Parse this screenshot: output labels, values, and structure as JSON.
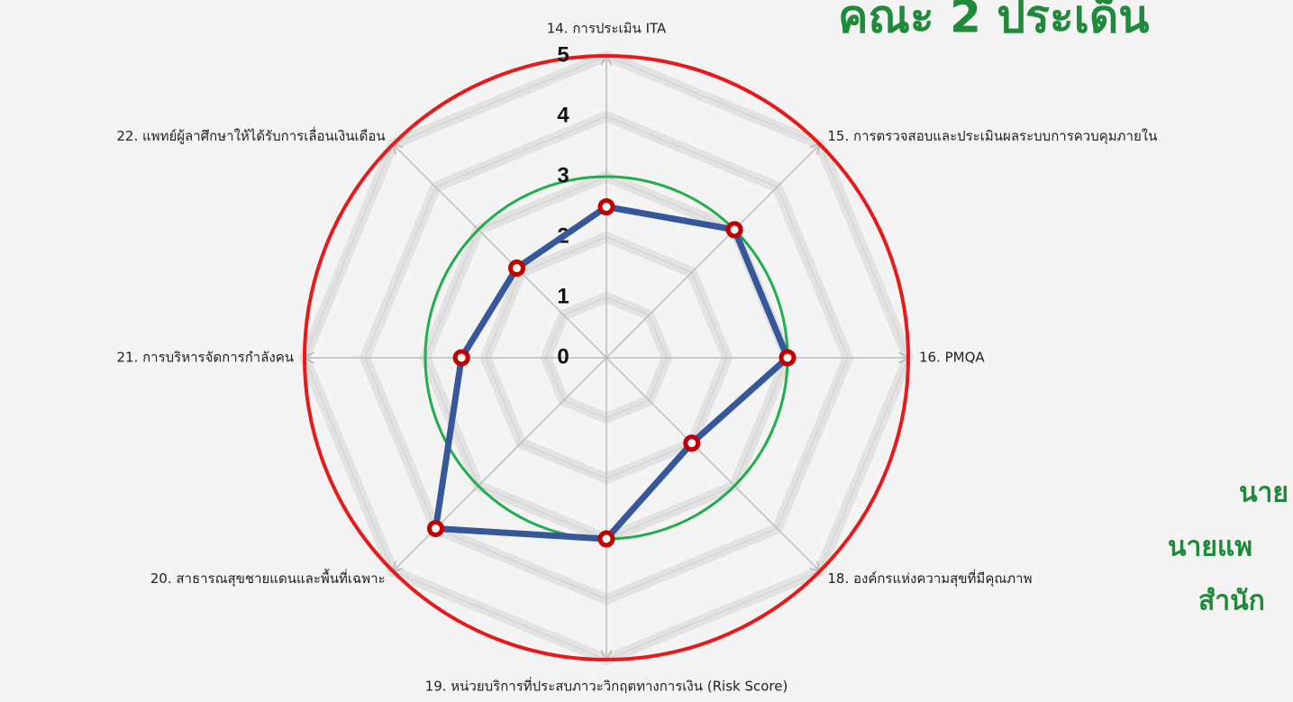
{
  "chart_data": {
    "type": "radar",
    "categories": [
      "14. การประเมิน ITA",
      "15. การตรวจสอบและประเมินผลระบบการควบคุมภายใน",
      "16. PMQA",
      "18. องค์กรแห่งความสุขที่มีคุณภาพ",
      "19. หน่วยบริการที่ประสบภาวะวิกฤตทางการเงิน (Risk Score)",
      "20. สาธารณสุขชายแดนและพื้นที่เฉพาะ",
      "21. การบริหารจัดการกำลังคน",
      "22. แพทย์ผู้ลาศึกษาให้ได้รับการเลื่อนเงินเดือน"
    ],
    "series": [
      {
        "name": null,
        "color": "#36589a",
        "marker_color": "#c00000",
        "values": [
          2.5,
          3,
          3,
          2,
          3,
          4,
          2.4,
          2.1
        ]
      }
    ],
    "rlim": [
      0,
      5
    ],
    "rticks": [
      0,
      1,
      2,
      3,
      4,
      5
    ],
    "grid": true,
    "reference_circles": [
      {
        "value": 3,
        "color": "#1fae4b"
      },
      {
        "value": 5,
        "color": "#e8191a"
      }
    ],
    "side_texts": [
      "คณะ 2 ประเด็น",
      "นาย",
      "นายแพ",
      "สำนัก"
    ]
  }
}
